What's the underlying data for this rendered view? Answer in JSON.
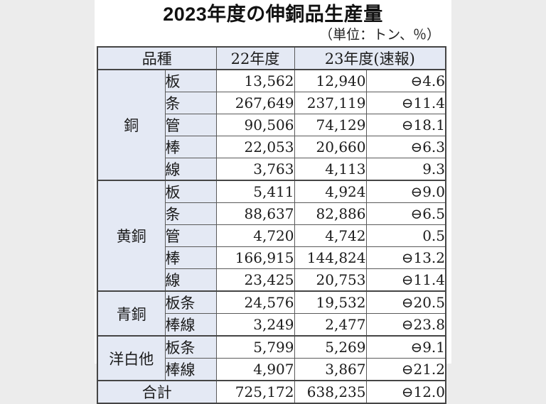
{
  "page": {
    "title": "2023年度の伸銅品生産量",
    "unit_note": "（単位：トン、％）"
  },
  "table": {
    "headers": {
      "kind": "品種",
      "fy22": "22年度",
      "fy23": "23年度(速報)"
    },
    "groups": [
      {
        "name": "銅",
        "rows": [
          {
            "type": "板",
            "fy22": "13,562",
            "fy23": "12,940",
            "change": "⊖4.6"
          },
          {
            "type": "条",
            "fy22": "267,649",
            "fy23": "237,119",
            "change": "⊖11.4"
          },
          {
            "type": "管",
            "fy22": "90,506",
            "fy23": "74,129",
            "change": "⊖18.1"
          },
          {
            "type": "棒",
            "fy22": "22,053",
            "fy23": "20,660",
            "change": "⊖6.3"
          },
          {
            "type": "線",
            "fy22": "3,763",
            "fy23": "4,113",
            "change": "9.3"
          }
        ]
      },
      {
        "name": "黄銅",
        "rows": [
          {
            "type": "板",
            "fy22": "5,411",
            "fy23": "4,924",
            "change": "⊖9.0"
          },
          {
            "type": "条",
            "fy22": "88,637",
            "fy23": "82,886",
            "change": "⊖6.5"
          },
          {
            "type": "管",
            "fy22": "4,720",
            "fy23": "4,742",
            "change": "0.5"
          },
          {
            "type": "棒",
            "fy22": "166,915",
            "fy23": "144,824",
            "change": "⊖13.2"
          },
          {
            "type": "線",
            "fy22": "23,425",
            "fy23": "20,753",
            "change": "⊖11.4"
          }
        ]
      },
      {
        "name": "青銅",
        "rows": [
          {
            "type": "板条",
            "fy22": "24,576",
            "fy23": "19,532",
            "change": "⊖20.5"
          },
          {
            "type": "棒線",
            "fy22": "3,249",
            "fy23": "2,477",
            "change": "⊖23.8"
          }
        ]
      },
      {
        "name": "洋白他",
        "rows": [
          {
            "type": "板条",
            "fy22": "5,799",
            "fy23": "5,269",
            "change": "⊖9.1"
          },
          {
            "type": "棒線",
            "fy22": "4,907",
            "fy23": "3,867",
            "change": "⊖21.2"
          }
        ]
      }
    ],
    "total": {
      "label": "合計",
      "fy22": "725,172",
      "fy23": "638,235",
      "change": "⊖12.0"
    }
  },
  "colors": {
    "label_cell_bg": "#e4e9f4",
    "border": "#454545",
    "page_margin_bg": "#ececec",
    "panel_bg": "#ffffff",
    "text": "#1b1b1b"
  }
}
